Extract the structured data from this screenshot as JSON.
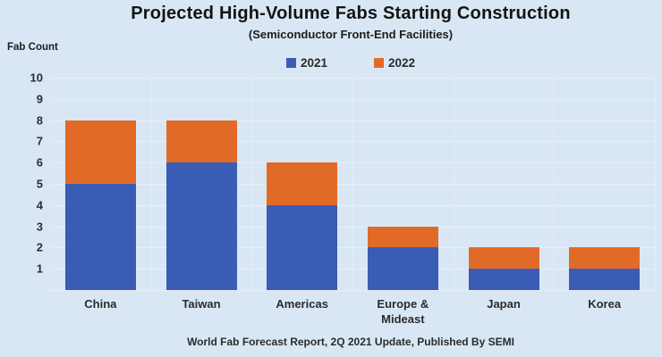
{
  "title": "Projected High-Volume Fabs Starting Construction",
  "subtitle": "(Semiconductor Front-End Facilities)",
  "y_axis_title": "Fab Count",
  "footer": "World Fab Forecast Report, 2Q 2021 Update, Published By SEMI",
  "colors": {
    "background": "#d9e7f5",
    "bar_2021": "#3a5cb5",
    "bar_2022": "#e26a27",
    "gridline": "#e8eef7",
    "text": "#262626"
  },
  "chart_data": {
    "type": "bar",
    "stacked": true,
    "title": "Projected High-Volume Fabs Starting Construction",
    "subtitle": "(Semiconductor Front-End Facilities)",
    "ylabel": "Fab Count",
    "xlabel": "",
    "categories": [
      "China",
      "Taiwan",
      "Americas",
      "Europe & Mideast",
      "Japan",
      "Korea"
    ],
    "series": [
      {
        "name": "2021",
        "color": "#3a5cb5",
        "values": [
          5,
          6,
          4,
          2,
          1,
          1
        ]
      },
      {
        "name": "2022",
        "color": "#e26a27",
        "values": [
          3,
          2,
          2,
          1,
          1,
          1
        ]
      }
    ],
    "totals": [
      8,
      8,
      6,
      3,
      2,
      2
    ],
    "ylim": [
      0,
      10
    ],
    "yticks": [
      1,
      2,
      3,
      4,
      5,
      6,
      7,
      8,
      9,
      10
    ],
    "grid": true,
    "legend_position": "top",
    "source_note": "World Fab Forecast Report, 2Q 2021 Update, Published By SEMI"
  }
}
